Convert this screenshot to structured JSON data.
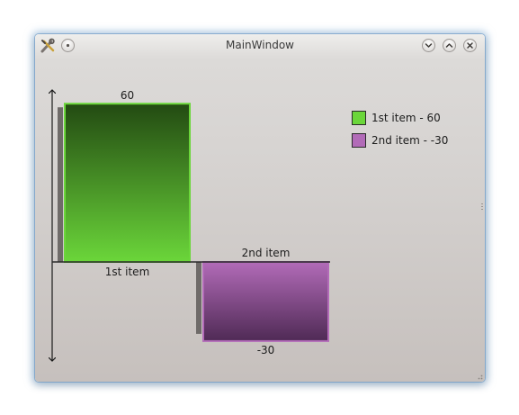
{
  "window": {
    "title": "MainWindow"
  },
  "titlebar": {
    "app_icon": "tools-icon",
    "menu_button_icon": "menu-dot-icon",
    "minimize_icon": "chevron-down-icon",
    "maximize_icon": "chevron-up-icon",
    "close_icon": "close-icon"
  },
  "chart_data": {
    "type": "bar",
    "categories": [
      "1st item",
      "2nd item"
    ],
    "values": [
      60,
      -30
    ],
    "value_labels": [
      "60",
      "-30"
    ],
    "colors": [
      "#6bd63a",
      "#b26bb8"
    ],
    "ylim": [
      -30,
      60
    ],
    "legend": {
      "position": "top-right",
      "entries": [
        "1st item - 60",
        "2nd item - -30"
      ]
    },
    "grid": false
  }
}
